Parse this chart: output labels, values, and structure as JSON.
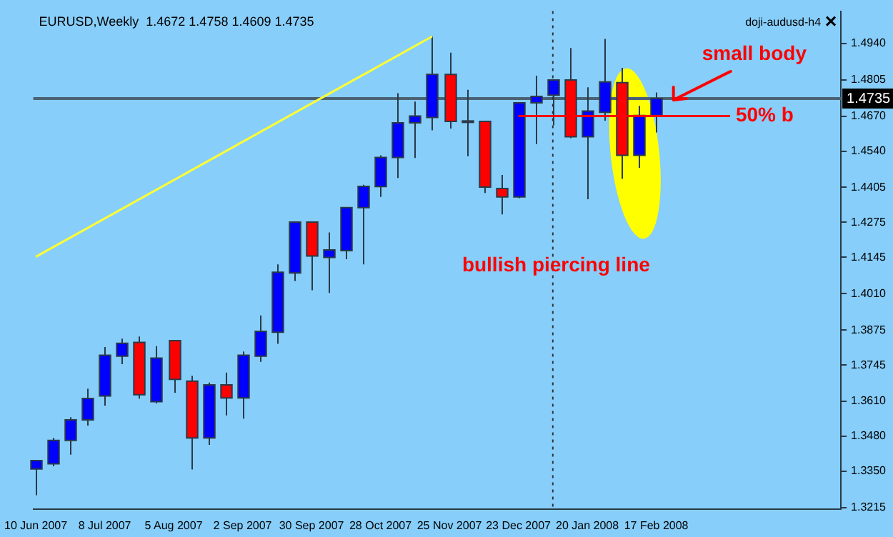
{
  "chart_data": {
    "type": "candlestick",
    "title": "EURUSD,Weekly  1.4672 1.4758 1.4609 1.4735",
    "subtitle": "doji-audusd-h4",
    "x": [
      "2007-06-10",
      "2007-06-17",
      "2007-06-24",
      "2007-07-01",
      "2007-07-08",
      "2007-07-15",
      "2007-07-22",
      "2007-07-29",
      "2007-08-05",
      "2007-08-12",
      "2007-08-19",
      "2007-08-26",
      "2007-09-02",
      "2007-09-09",
      "2007-09-16",
      "2007-09-23",
      "2007-09-30",
      "2007-10-07",
      "2007-10-14",
      "2007-10-21",
      "2007-10-28",
      "2007-11-04",
      "2007-11-11",
      "2007-11-18",
      "2007-11-25",
      "2007-12-02",
      "2007-12-09",
      "2007-12-16",
      "2007-12-23",
      "2007-12-30",
      "2008-01-06",
      "2008-01-13",
      "2008-01-20",
      "2008-01-27",
      "2008-02-03",
      "2008-02-10",
      "2008-02-17"
    ],
    "ohlc": [
      [
        1.3359,
        1.3392,
        1.3261,
        1.339
      ],
      [
        1.3378,
        1.3474,
        1.3369,
        1.3465
      ],
      [
        1.3465,
        1.3551,
        1.3412,
        1.3541
      ],
      [
        1.3541,
        1.3657,
        1.352,
        1.3621
      ],
      [
        1.363,
        1.3812,
        1.3594,
        1.3781
      ],
      [
        1.3778,
        1.3843,
        1.3748,
        1.3826
      ],
      [
        1.3829,
        1.3851,
        1.362,
        1.3635
      ],
      [
        1.3609,
        1.3815,
        1.3602,
        1.3771
      ],
      [
        1.3836,
        1.3836,
        1.3642,
        1.3692
      ],
      [
        1.3685,
        1.3705,
        1.3357,
        1.3474
      ],
      [
        1.3474,
        1.368,
        1.3448,
        1.3671
      ],
      [
        1.3671,
        1.3717,
        1.3558,
        1.3623
      ],
      [
        1.3623,
        1.3795,
        1.3546,
        1.3781
      ],
      [
        1.3778,
        1.3929,
        1.3757,
        1.387
      ],
      [
        1.3867,
        1.4119,
        1.3824,
        1.409
      ],
      [
        1.4087,
        1.4279,
        1.4057,
        1.4276
      ],
      [
        1.4276,
        1.4279,
        1.4023,
        1.415
      ],
      [
        1.4145,
        1.4238,
        1.4013,
        1.4173
      ],
      [
        1.417,
        1.433,
        1.4138,
        1.433
      ],
      [
        1.433,
        1.4415,
        1.4119,
        1.4409
      ],
      [
        1.4408,
        1.4524,
        1.437,
        1.4516
      ],
      [
        1.4516,
        1.4755,
        1.444,
        1.4645
      ],
      [
        1.4645,
        1.4724,
        1.4514,
        1.467
      ],
      [
        1.4665,
        1.4966,
        1.4617,
        1.4825
      ],
      [
        1.4825,
        1.4906,
        1.4624,
        1.465
      ],
      [
        1.465,
        1.4768,
        1.4521,
        1.4652
      ],
      [
        1.465,
        1.465,
        1.4384,
        1.4406
      ],
      [
        1.4401,
        1.4451,
        1.4305,
        1.437
      ],
      [
        1.437,
        1.4719,
        1.4365,
        1.4719
      ],
      [
        1.4719,
        1.482,
        1.4566,
        1.4743
      ],
      [
        1.4748,
        1.4804,
        1.4636,
        1.4804
      ],
      [
        1.4804,
        1.4923,
        1.4588,
        1.4593
      ],
      [
        1.4593,
        1.4777,
        1.4361,
        1.4689
      ],
      [
        1.4684,
        1.4957,
        1.4653,
        1.4797
      ],
      [
        1.4794,
        1.4849,
        1.4437,
        1.4524
      ],
      [
        1.4524,
        1.4708,
        1.4478,
        1.4672
      ],
      [
        1.4672,
        1.4758,
        1.4609,
        1.4735
      ]
    ],
    "colors": [
      "#0000ff",
      "#0000ff",
      "#0000ff",
      "#0000ff",
      "#0000ff",
      "#0000ff",
      "#ff0000",
      "#0000ff",
      "#ff0000",
      "#ff0000",
      "#0000ff",
      "#ff0000",
      "#0000ff",
      "#0000ff",
      "#0000ff",
      "#0000ff",
      "#ff0000",
      "#0000ff",
      "#0000ff",
      "#0000ff",
      "#0000ff",
      "#0000ff",
      "#0000ff",
      "#0000ff",
      "#ff0000",
      "#0000ff",
      "#ff0000",
      "#ff0000",
      "#0000ff",
      "#0000ff",
      "#0000ff",
      "#ff0000",
      "#0000ff",
      "#0000ff",
      "#ff0000",
      "#0000ff",
      "#0000ff"
    ],
    "series": [
      {
        "type": "line",
        "color": "#ffff33",
        "x": [
          "2007-06-10",
          "2007-11-18"
        ],
        "values": [
          1.4147,
          1.4966
        ]
      },
      {
        "type": "line",
        "name": "50% b",
        "color": "#ff0000",
        "x": [
          "2007-12-23",
          "2008-03-18"
        ],
        "values": [
          1.467,
          1.467
        ]
      }
    ],
    "xlim": [
      "2007-06-09",
      "2008-05-02"
    ],
    "xticks": [
      {
        "value": "2007-06-10",
        "label": "10 Jun 2007"
      },
      {
        "value": "2007-07-08",
        "label": "8 Jul 2007"
      },
      {
        "value": "2007-08-05",
        "label": "5 Aug 2007"
      },
      {
        "value": "2007-09-02",
        "label": "2 Sep 2007"
      },
      {
        "value": "2007-09-30",
        "label": "30 Sep 2007"
      },
      {
        "value": "2007-10-28",
        "label": "28 Oct 2007"
      },
      {
        "value": "2007-11-25",
        "label": "25 Nov 2007"
      },
      {
        "value": "2007-12-23",
        "label": "23 Dec 2007"
      },
      {
        "value": "2008-01-20",
        "label": "20 Jan 2008"
      },
      {
        "value": "2008-02-17",
        "label": "17 Feb 2008"
      }
    ],
    "ylim": [
      1.321,
      1.506
    ],
    "yticks": [
      {
        "value": 1.3215,
        "label": "1.3215"
      },
      {
        "value": 1.335,
        "label": "1.3350"
      },
      {
        "value": 1.348,
        "label": "1.3480"
      },
      {
        "value": 1.361,
        "label": "1.3610"
      },
      {
        "value": 1.3745,
        "label": "1.3745"
      },
      {
        "value": 1.3875,
        "label": "1.3875"
      },
      {
        "value": 1.401,
        "label": "1.4010"
      },
      {
        "value": 1.4145,
        "label": "1.4145"
      },
      {
        "value": 1.4275,
        "label": "1.4275"
      },
      {
        "value": 1.4405,
        "label": "1.4405"
      },
      {
        "value": 1.454,
        "label": "1.4540"
      },
      {
        "value": 1.467,
        "label": "1.4670"
      },
      {
        "value": 1.4805,
        "label": "1.4805"
      },
      {
        "value": 1.494,
        "label": "1.4940"
      }
    ],
    "ref_lines": [
      {
        "axis": "y",
        "value": 1.4735,
        "label": "1.4735",
        "color": "#4a6274"
      },
      {
        "axis": "x",
        "value": "2008-01-06",
        "color": "#333333",
        "line_style": "dotted"
      }
    ],
    "annotations": [
      "bullish piercing line",
      {
        "text": "small body",
        "x": "2008-02-24",
        "y": 1.473
      }
    ],
    "grid": false,
    "legend": false
  }
}
